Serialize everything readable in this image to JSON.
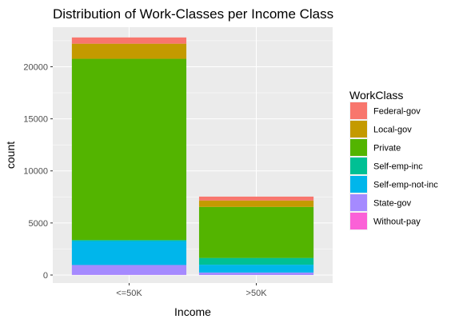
{
  "chart_data": {
    "type": "bar",
    "stacked": true,
    "title": "Distribution of Work-Classes per Income Class",
    "xlabel": "Income",
    "ylabel": "count",
    "categories": [
      "<=50K",
      ">50K"
    ],
    "ylim": [
      0,
      23800
    ],
    "yticks": [
      0,
      5000,
      10000,
      15000,
      20000
    ],
    "ytick_labels": [
      "0",
      "5000",
      "10000",
      "15000",
      "20000"
    ],
    "grid": true,
    "legend_title": "WorkClass",
    "legend_position": "right",
    "series": [
      {
        "name": "Federal-gov",
        "color": "#F8766D",
        "values": [
          600,
          370
        ]
      },
      {
        "name": "Local-gov",
        "color": "#C49A00",
        "values": [
          1450,
          620
        ]
      },
      {
        "name": "Private",
        "color": "#53B400",
        "values": [
          17400,
          4900
        ]
      },
      {
        "name": "Self-emp-inc",
        "color": "#00C094",
        "values": [
          100,
          650
        ]
      },
      {
        "name": "Self-emp-not-inc",
        "color": "#00B6EB",
        "values": [
          2300,
          750
        ]
      },
      {
        "name": "State-gov",
        "color": "#A58AFF",
        "values": [
          950,
          240
        ]
      },
      {
        "name": "Without-pay",
        "color": "#FB61D7",
        "values": [
          14,
          0
        ]
      }
    ]
  }
}
